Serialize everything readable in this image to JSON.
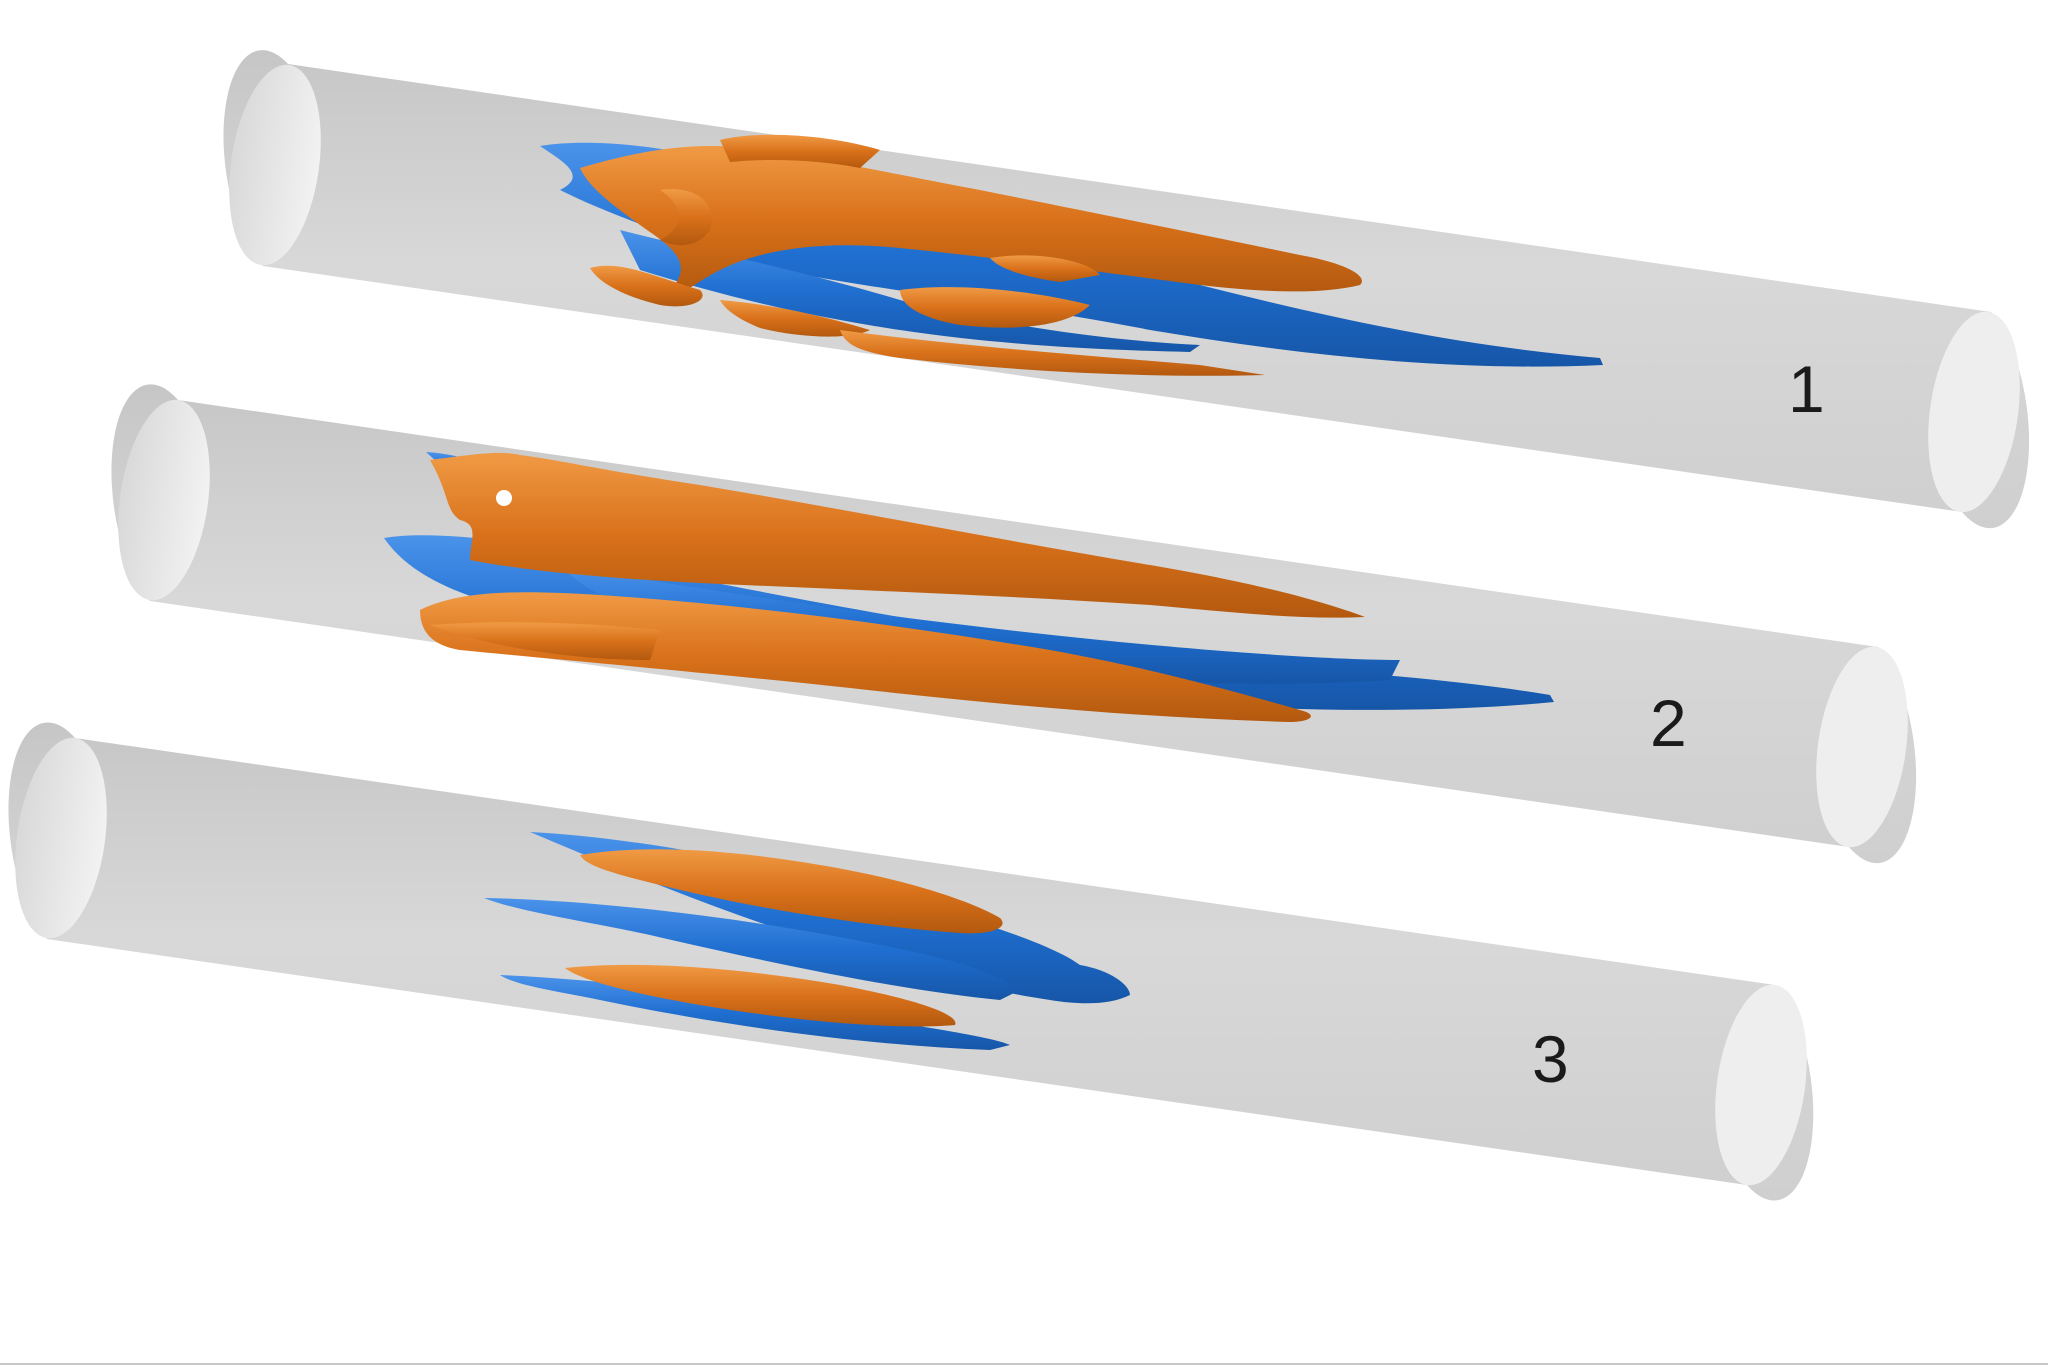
{
  "figure": {
    "panels": [
      {
        "label": "1"
      },
      {
        "label": "2"
      },
      {
        "label": "3"
      }
    ],
    "colors": {
      "background": "#ffffff",
      "pipe_fill": "#d4d4d4",
      "pipe_fill_dark": "#bdbdbd",
      "pipe_cap": "#e9e9e9",
      "positive_structure": "#d9731a",
      "negative_structure": "#1f6fd1"
    },
    "icons": [
      "cylinder-pipe",
      "orange-vortex-structure",
      "blue-vortex-structure"
    ]
  }
}
